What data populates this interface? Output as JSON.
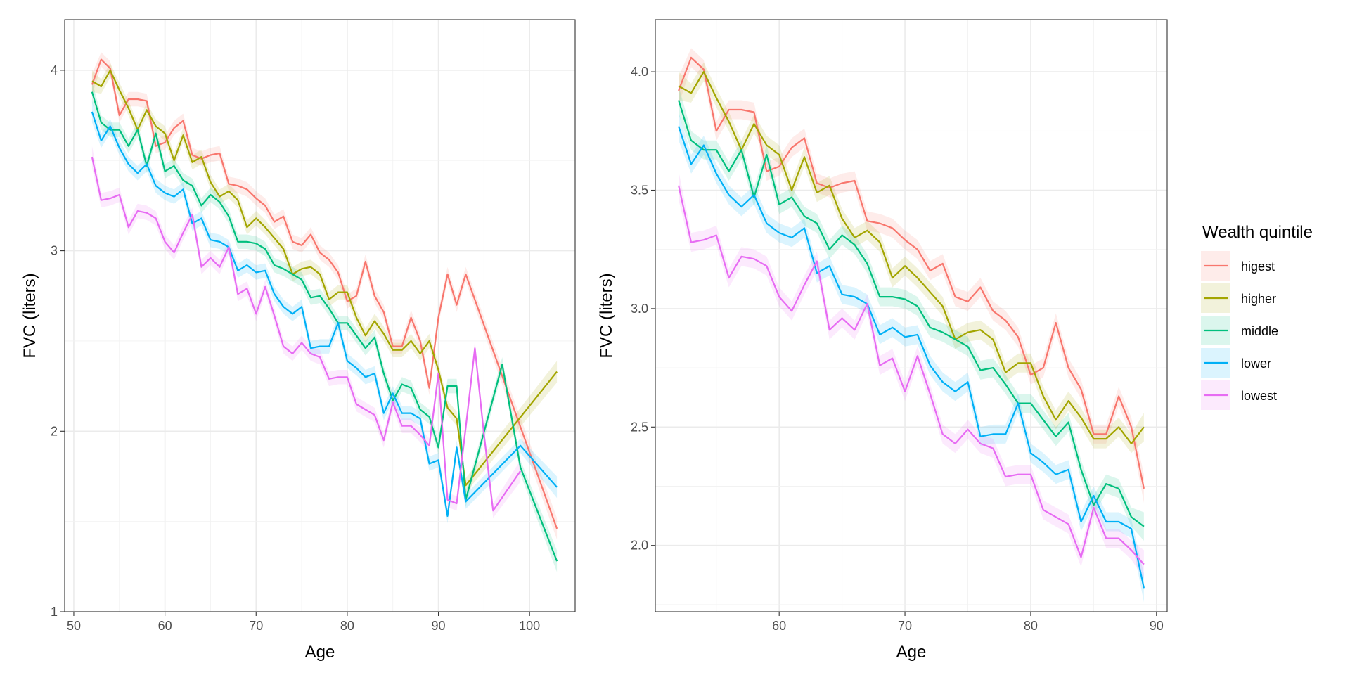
{
  "chart_data": [
    {
      "type": "line",
      "panel": "left",
      "xlabel": "Age",
      "ylabel": "FVC (liters)",
      "xlim": [
        49,
        105
      ],
      "ylim": [
        1,
        4.28
      ],
      "xticks": [
        50,
        60,
        70,
        80,
        90,
        100
      ],
      "xtick_labels": [
        "50",
        "60",
        "70",
        "80",
        "90",
        "100"
      ],
      "yticks": [
        1,
        2,
        3,
        4
      ],
      "ytick_labels": [
        "1",
        "2",
        "3",
        "4"
      ],
      "grid": true,
      "series": [
        {
          "name": "higest",
          "color": "#F8766D",
          "x": [
            52,
            53,
            54,
            55,
            56,
            57,
            58,
            59,
            60,
            61,
            62,
            63,
            64,
            65,
            66,
            67,
            68,
            69,
            70,
            71,
            72,
            73,
            74,
            75,
            76,
            77,
            78,
            79,
            80,
            81,
            82,
            83,
            84,
            85,
            86,
            87,
            88,
            89,
            90,
            91,
            92,
            93,
            103
          ],
          "y": [
            3.92,
            4.06,
            4.01,
            3.75,
            3.84,
            3.84,
            3.83,
            3.58,
            3.6,
            3.68,
            3.72,
            3.53,
            3.51,
            3.53,
            3.54,
            3.37,
            3.36,
            3.34,
            3.29,
            3.25,
            3.16,
            3.19,
            3.05,
            3.03,
            3.09,
            2.99,
            2.95,
            2.88,
            2.72,
            2.75,
            2.94,
            2.75,
            2.66,
            2.47,
            2.47,
            2.63,
            2.5,
            2.24,
            2.63,
            2.87,
            2.7,
            2.87,
            1.46
          ]
        },
        {
          "name": "higher",
          "color": "#A3A500",
          "x": [
            52,
            53,
            54,
            55,
            56,
            57,
            58,
            59,
            60,
            61,
            62,
            63,
            64,
            65,
            66,
            67,
            68,
            69,
            70,
            71,
            72,
            73,
            74,
            75,
            76,
            77,
            78,
            79,
            80,
            81,
            82,
            83,
            84,
            85,
            86,
            87,
            88,
            89,
            90,
            91,
            92,
            93,
            103
          ],
          "y": [
            3.94,
            3.91,
            4.0,
            3.89,
            3.79,
            3.67,
            3.78,
            3.69,
            3.65,
            3.5,
            3.64,
            3.49,
            3.52,
            3.38,
            3.3,
            3.33,
            3.28,
            3.13,
            3.18,
            3.13,
            3.07,
            3.01,
            2.87,
            2.9,
            2.91,
            2.87,
            2.73,
            2.77,
            2.77,
            2.63,
            2.53,
            2.61,
            2.54,
            2.45,
            2.45,
            2.5,
            2.43,
            2.5,
            2.34,
            2.13,
            2.07,
            1.7,
            2.33
          ]
        },
        {
          "name": "middle",
          "color": "#00BF7D",
          "x": [
            52,
            53,
            54,
            55,
            56,
            57,
            58,
            59,
            60,
            61,
            62,
            63,
            64,
            65,
            66,
            67,
            68,
            69,
            70,
            71,
            72,
            73,
            74,
            75,
            76,
            77,
            78,
            79,
            80,
            81,
            82,
            83,
            84,
            85,
            86,
            87,
            88,
            89,
            90,
            91,
            92,
            93,
            97,
            99,
            103
          ],
          "y": [
            3.88,
            3.71,
            3.67,
            3.67,
            3.58,
            3.67,
            3.47,
            3.65,
            3.44,
            3.47,
            3.39,
            3.36,
            3.25,
            3.31,
            3.27,
            3.19,
            3.05,
            3.05,
            3.04,
            3.01,
            2.92,
            2.9,
            2.87,
            2.84,
            2.74,
            2.75,
            2.68,
            2.6,
            2.6,
            2.53,
            2.46,
            2.52,
            2.32,
            2.17,
            2.26,
            2.24,
            2.12,
            2.08,
            1.91,
            2.25,
            2.25,
            1.62,
            2.37,
            1.8,
            1.28
          ]
        },
        {
          "name": "lower",
          "color": "#00B0F6",
          "x": [
            52,
            53,
            54,
            55,
            56,
            57,
            58,
            59,
            60,
            61,
            62,
            63,
            64,
            65,
            66,
            67,
            68,
            69,
            70,
            71,
            72,
            73,
            74,
            75,
            76,
            77,
            78,
            79,
            80,
            81,
            82,
            83,
            84,
            85,
            86,
            87,
            88,
            89,
            90,
            91,
            92,
            93,
            99,
            103
          ],
          "y": [
            3.77,
            3.61,
            3.69,
            3.57,
            3.48,
            3.43,
            3.48,
            3.36,
            3.32,
            3.3,
            3.34,
            3.15,
            3.18,
            3.06,
            3.05,
            3.02,
            2.89,
            2.92,
            2.88,
            2.89,
            2.76,
            2.69,
            2.65,
            2.69,
            2.46,
            2.47,
            2.47,
            2.6,
            2.39,
            2.35,
            2.3,
            2.32,
            2.1,
            2.21,
            2.1,
            2.1,
            2.07,
            1.82,
            1.84,
            1.53,
            1.91,
            1.61,
            1.92,
            1.69
          ]
        },
        {
          "name": "lowest",
          "color": "#E76BF3",
          "x": [
            52,
            53,
            54,
            55,
            56,
            57,
            58,
            59,
            60,
            61,
            62,
            63,
            64,
            65,
            66,
            67,
            68,
            69,
            70,
            71,
            72,
            73,
            74,
            75,
            76,
            77,
            78,
            79,
            80,
            81,
            82,
            83,
            84,
            85,
            86,
            87,
            88,
            89,
            90,
            91,
            92,
            93,
            94,
            95,
            96,
            99
          ],
          "y": [
            3.52,
            3.28,
            3.29,
            3.31,
            3.13,
            3.22,
            3.21,
            3.18,
            3.05,
            2.99,
            3.1,
            3.2,
            2.91,
            2.96,
            2.91,
            3.02,
            2.76,
            2.79,
            2.65,
            2.8,
            2.64,
            2.47,
            2.43,
            2.49,
            2.43,
            2.41,
            2.29,
            2.3,
            2.3,
            2.15,
            2.12,
            2.09,
            1.95,
            2.16,
            2.03,
            2.03,
            1.98,
            1.92,
            2.32,
            1.62,
            1.6,
            2.02,
            2.46,
            1.98,
            1.56,
            1.78
          ]
        }
      ]
    },
    {
      "type": "line",
      "panel": "right",
      "xlabel": "Age",
      "ylabel": "FVC (liters)",
      "xlim": [
        50.15,
        90.85
      ],
      "ylim": [
        1.72,
        4.22
      ],
      "xticks": [
        60,
        70,
        80,
        90
      ],
      "xtick_labels": [
        "60",
        "70",
        "80",
        "90"
      ],
      "yticks": [
        2.0,
        2.5,
        3.0,
        3.5,
        4.0
      ],
      "ytick_labels": [
        "2.0",
        "2.5",
        "3.0",
        "3.5",
        "4.0"
      ],
      "grid": true,
      "series": [
        {
          "name": "higest",
          "color": "#F8766D",
          "x": [
            52,
            53,
            54,
            55,
            56,
            57,
            58,
            59,
            60,
            61,
            62,
            63,
            64,
            65,
            66,
            67,
            68,
            69,
            70,
            71,
            72,
            73,
            74,
            75,
            76,
            77,
            78,
            79,
            80,
            81,
            82,
            83,
            84,
            85,
            86,
            87,
            88,
            89
          ],
          "y": [
            3.92,
            4.06,
            4.01,
            3.75,
            3.84,
            3.84,
            3.83,
            3.58,
            3.6,
            3.68,
            3.72,
            3.53,
            3.51,
            3.53,
            3.54,
            3.37,
            3.36,
            3.34,
            3.29,
            3.25,
            3.16,
            3.19,
            3.05,
            3.03,
            3.09,
            2.99,
            2.95,
            2.88,
            2.72,
            2.75,
            2.94,
            2.75,
            2.66,
            2.47,
            2.47,
            2.63,
            2.5,
            2.24
          ]
        },
        {
          "name": "higher",
          "color": "#A3A500",
          "x": [
            52,
            53,
            54,
            55,
            56,
            57,
            58,
            59,
            60,
            61,
            62,
            63,
            64,
            65,
            66,
            67,
            68,
            69,
            70,
            71,
            72,
            73,
            74,
            75,
            76,
            77,
            78,
            79,
            80,
            81,
            82,
            83,
            84,
            85,
            86,
            87,
            88,
            89
          ],
          "y": [
            3.94,
            3.91,
            4.0,
            3.89,
            3.79,
            3.67,
            3.78,
            3.69,
            3.65,
            3.5,
            3.64,
            3.49,
            3.52,
            3.38,
            3.3,
            3.33,
            3.28,
            3.13,
            3.18,
            3.13,
            3.07,
            3.01,
            2.87,
            2.9,
            2.91,
            2.87,
            2.73,
            2.77,
            2.77,
            2.63,
            2.53,
            2.61,
            2.54,
            2.45,
            2.45,
            2.5,
            2.43,
            2.5
          ]
        },
        {
          "name": "middle",
          "color": "#00BF7D",
          "x": [
            52,
            53,
            54,
            55,
            56,
            57,
            58,
            59,
            60,
            61,
            62,
            63,
            64,
            65,
            66,
            67,
            68,
            69,
            70,
            71,
            72,
            73,
            74,
            75,
            76,
            77,
            78,
            79,
            80,
            81,
            82,
            83,
            84,
            85,
            86,
            87,
            88,
            89
          ],
          "y": [
            3.88,
            3.71,
            3.67,
            3.67,
            3.58,
            3.67,
            3.47,
            3.65,
            3.44,
            3.47,
            3.39,
            3.36,
            3.25,
            3.31,
            3.27,
            3.19,
            3.05,
            3.05,
            3.04,
            3.01,
            2.92,
            2.9,
            2.87,
            2.84,
            2.74,
            2.75,
            2.68,
            2.6,
            2.6,
            2.53,
            2.46,
            2.52,
            2.32,
            2.17,
            2.26,
            2.24,
            2.12,
            2.08
          ]
        },
        {
          "name": "lower",
          "color": "#00B0F6",
          "x": [
            52,
            53,
            54,
            55,
            56,
            57,
            58,
            59,
            60,
            61,
            62,
            63,
            64,
            65,
            66,
            67,
            68,
            69,
            70,
            71,
            72,
            73,
            74,
            75,
            76,
            77,
            78,
            79,
            80,
            81,
            82,
            83,
            84,
            85,
            86,
            87,
            88,
            89
          ],
          "y": [
            3.77,
            3.61,
            3.69,
            3.57,
            3.48,
            3.43,
            3.48,
            3.36,
            3.32,
            3.3,
            3.34,
            3.15,
            3.18,
            3.06,
            3.05,
            3.02,
            2.89,
            2.92,
            2.88,
            2.89,
            2.76,
            2.69,
            2.65,
            2.69,
            2.46,
            2.47,
            2.47,
            2.6,
            2.39,
            2.35,
            2.3,
            2.32,
            2.1,
            2.21,
            2.1,
            2.1,
            2.07,
            1.82
          ]
        },
        {
          "name": "lowest",
          "color": "#E76BF3",
          "x": [
            52,
            53,
            54,
            55,
            56,
            57,
            58,
            59,
            60,
            61,
            62,
            63,
            64,
            65,
            66,
            67,
            68,
            69,
            70,
            71,
            72,
            73,
            74,
            75,
            76,
            77,
            78,
            79,
            80,
            81,
            82,
            83,
            84,
            85,
            86,
            87,
            88,
            89
          ],
          "y": [
            3.52,
            3.28,
            3.29,
            3.31,
            3.13,
            3.22,
            3.21,
            3.18,
            3.05,
            2.99,
            3.1,
            3.2,
            2.91,
            2.96,
            2.91,
            3.02,
            2.76,
            2.79,
            2.65,
            2.8,
            2.64,
            2.47,
            2.43,
            2.49,
            2.43,
            2.41,
            2.29,
            2.3,
            2.3,
            2.15,
            2.12,
            2.09,
            1.95,
            2.16,
            2.03,
            2.03,
            1.98,
            1.92
          ]
        }
      ]
    }
  ],
  "legend": {
    "title": "Wealth quintile",
    "items": [
      {
        "label": "higest",
        "color": "#F8766D"
      },
      {
        "label": "higher",
        "color": "#A3A500"
      },
      {
        "label": "middle",
        "color": "#00BF7D"
      },
      {
        "label": "lower",
        "color": "#00B0F6"
      },
      {
        "label": "lowest",
        "color": "#E76BF3"
      }
    ]
  }
}
